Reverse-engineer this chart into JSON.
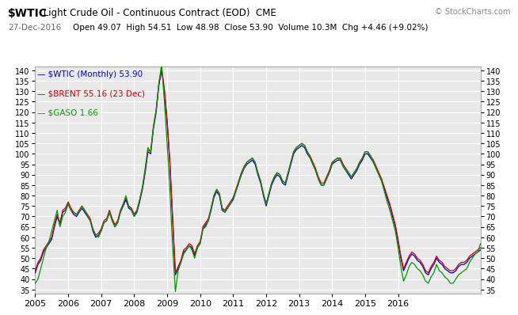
{
  "title_line1_bold": "$WTIC",
  "title_line1_normal": " Light Crude Oil - Continuous Contract (EOD)  CME",
  "title_line2": "27-Dec-2016",
  "title_line2b": "        Open 49.07  High 54.51  Low 48.98  Close 53.90  Volume 10.3M  Chg +4.46 (+9.02%)",
  "watermark": "© StockCharts.com",
  "legend": [
    {
      "label": "— $WTIC (Monthly) 53.90",
      "color": "#0000cc"
    },
    {
      "label": "— $BRENT 55.16 (23 Dec)",
      "color": "#cc0000"
    },
    {
      "label": "— $GASO 1.66",
      "color": "#009900"
    }
  ],
  "bg_color": "#ffffff",
  "plot_bg": "#e8e8e8",
  "grid_color": "#ffffff",
  "ylim": [
    33,
    142
  ],
  "yticks": [
    35,
    40,
    45,
    50,
    55,
    60,
    65,
    70,
    75,
    80,
    85,
    90,
    95,
    100,
    105,
    110,
    115,
    120,
    125,
    130,
    135,
    140
  ],
  "xlabel_years": [
    "2005",
    "2006",
    "2007",
    "2008",
    "2009",
    "2010",
    "2011",
    "2012",
    "2013",
    "2014",
    "2015",
    "2016"
  ],
  "year_tick_positions": [
    0,
    12,
    24,
    36,
    48,
    60,
    72,
    84,
    96,
    108,
    120,
    132
  ],
  "wtic": [
    43,
    47,
    49,
    53,
    55,
    57,
    59,
    65,
    70,
    66,
    72,
    73,
    76,
    73,
    71,
    70,
    72,
    74,
    72,
    70,
    68,
    63,
    60,
    61,
    63,
    67,
    68,
    72,
    68,
    65,
    67,
    72,
    75,
    78,
    74,
    73,
    70,
    72,
    77,
    83,
    91,
    101,
    100,
    112,
    120,
    133,
    140,
    130,
    115,
    95,
    68,
    42,
    45,
    48,
    53,
    54,
    56,
    55,
    51,
    55,
    57,
    64,
    66,
    68,
    73,
    79,
    82,
    80,
    73,
    72,
    74,
    76,
    78,
    82,
    86,
    90,
    93,
    95,
    96,
    97,
    95,
    90,
    86,
    80,
    75,
    80,
    85,
    88,
    90,
    89,
    86,
    85,
    90,
    95,
    100,
    102,
    103,
    104,
    103,
    100,
    98,
    95,
    92,
    88,
    85,
    85,
    88,
    91,
    95,
    96,
    97,
    97,
    94,
    92,
    90,
    88,
    90,
    92,
    95,
    97,
    100,
    100,
    98,
    96,
    93,
    90,
    87,
    83,
    79,
    75,
    70,
    65,
    58,
    50,
    44,
    47,
    50,
    52,
    51,
    49,
    48,
    46,
    43,
    42,
    45,
    47,
    50,
    48,
    47,
    45,
    44,
    43,
    43,
    44,
    46,
    47,
    47,
    48,
    50,
    51,
    52,
    53,
    54
  ],
  "brent": [
    44,
    48,
    50,
    54,
    56,
    58,
    60,
    66,
    71,
    67,
    73,
    74,
    77,
    74,
    72,
    71,
    73,
    75,
    73,
    71,
    69,
    64,
    61,
    62,
    64,
    68,
    69,
    73,
    69,
    66,
    68,
    73,
    76,
    79,
    75,
    74,
    71,
    73,
    78,
    84,
    92,
    102,
    101,
    113,
    121,
    134,
    141,
    131,
    116,
    96,
    69,
    43,
    46,
    49,
    54,
    55,
    57,
    56,
    52,
    56,
    58,
    65,
    67,
    69,
    74,
    80,
    83,
    81,
    74,
    73,
    75,
    77,
    79,
    83,
    87,
    91,
    94,
    96,
    97,
    98,
    96,
    91,
    87,
    81,
    76,
    81,
    86,
    89,
    91,
    90,
    87,
    86,
    91,
    96,
    101,
    103,
    104,
    105,
    104,
    101,
    99,
    96,
    93,
    89,
    86,
    86,
    89,
    92,
    96,
    97,
    98,
    98,
    95,
    93,
    91,
    89,
    91,
    93,
    96,
    98,
    101,
    101,
    99,
    97,
    94,
    91,
    88,
    84,
    80,
    76,
    71,
    66,
    59,
    51,
    45,
    48,
    51,
    53,
    52,
    50,
    49,
    47,
    44,
    43,
    46,
    48,
    51,
    49,
    48,
    46,
    45,
    44,
    44,
    45,
    47,
    48,
    48,
    49,
    51,
    52,
    53,
    54,
    55
  ],
  "gaso": [
    38,
    40,
    45,
    50,
    55,
    58,
    63,
    68,
    73,
    65,
    70,
    72,
    76,
    73,
    72,
    71,
    72,
    75,
    73,
    70,
    68,
    64,
    61,
    60,
    63,
    67,
    68,
    72,
    68,
    65,
    67,
    72,
    76,
    80,
    75,
    73,
    70,
    73,
    78,
    84,
    93,
    103,
    101,
    113,
    121,
    134,
    143,
    125,
    105,
    82,
    55,
    34,
    44,
    48,
    52,
    54,
    56,
    54,
    50,
    55,
    57,
    64,
    65,
    68,
    74,
    80,
    83,
    81,
    74,
    72,
    74,
    76,
    79,
    82,
    86,
    91,
    93,
    96,
    97,
    98,
    96,
    91,
    87,
    81,
    76,
    81,
    86,
    89,
    91,
    90,
    87,
    86,
    91,
    96,
    101,
    103,
    104,
    105,
    104,
    101,
    98,
    95,
    92,
    88,
    85,
    85,
    88,
    91,
    95,
    97,
    98,
    97,
    94,
    92,
    91,
    89,
    91,
    93,
    96,
    98,
    101,
    101,
    99,
    96,
    93,
    90,
    87,
    82,
    77,
    73,
    68,
    63,
    55,
    46,
    39,
    42,
    46,
    48,
    47,
    45,
    44,
    42,
    39,
    38,
    41,
    43,
    47,
    44,
    43,
    41,
    40,
    38,
    38,
    40,
    42,
    43,
    44,
    45,
    48,
    50,
    52,
    53,
    57
  ]
}
